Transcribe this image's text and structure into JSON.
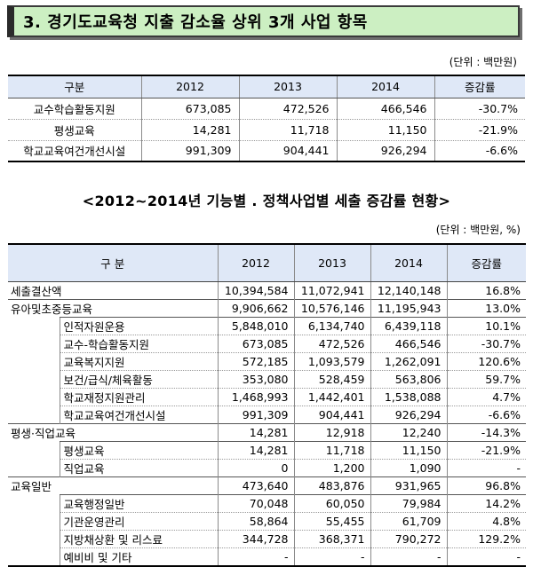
{
  "title": "3. 경기도교육청 지출 감소율 상위 3개 사업 항목",
  "table1": {
    "unit": "(단위 : 백만원)",
    "headers": [
      "구분",
      "2012",
      "2013",
      "2014",
      "증감률"
    ],
    "rows": [
      [
        "교수학습활동지원",
        "673,085",
        "472,526",
        "466,546",
        "-30.7%"
      ],
      [
        "평생교육",
        "14,281",
        "11,718",
        "11,150",
        "-21.9%"
      ],
      [
        "학교교육여건개선시설",
        "991,309",
        "904,441",
        "926,294",
        "-6.6%"
      ]
    ]
  },
  "subtitle": "<2012~2014년 기능별 . 정책사업별 세출 증감률 현황>",
  "table2": {
    "unit": "(단위 : 백만원, %)",
    "headers": [
      "구 분",
      "2012",
      "2013",
      "2014",
      "증감률"
    ],
    "rows": [
      {
        "level": 1,
        "label": "세출결산액",
        "values": [
          "10,394,584",
          "11,072,941",
          "12,140,148",
          "16.8%"
        ]
      },
      {
        "level": 1,
        "label": "유아및초중등교육",
        "values": [
          "9,906,662",
          "10,576,146",
          "11,195,943",
          "13.0%"
        ]
      },
      {
        "level": 2,
        "label": "인적자원운용",
        "values": [
          "5,848,010",
          "6,134,740",
          "6,439,118",
          "10.1%"
        ]
      },
      {
        "level": 2,
        "label": "교수-학습활동지원",
        "values": [
          "673,085",
          "472,526",
          "466,546",
          "-30.7%"
        ]
      },
      {
        "level": 2,
        "label": "교육복지지원",
        "values": [
          "572,185",
          "1,093,579",
          "1,262,091",
          "120.6%"
        ]
      },
      {
        "level": 2,
        "label": "보건/급식/체육활동",
        "values": [
          "353,080",
          "528,459",
          "563,806",
          "59.7%"
        ]
      },
      {
        "level": 2,
        "label": "학교재정지원관리",
        "values": [
          "1,468,993",
          "1,442,401",
          "1,538,088",
          "4.7%"
        ]
      },
      {
        "level": 2,
        "label": "학교교육여건개선시설",
        "values": [
          "991,309",
          "904,441",
          "926,294",
          "-6.6%"
        ]
      },
      {
        "level": 1,
        "label": "평생·직업교육",
        "values": [
          "14,281",
          "12,918",
          "12,240",
          "-14.3%"
        ]
      },
      {
        "level": 2,
        "label": "평생교육",
        "values": [
          "14,281",
          "11,718",
          "11,150",
          "-21.9%"
        ]
      },
      {
        "level": 2,
        "label": "직업교육",
        "values": [
          "0",
          "1,200",
          "1,090",
          "-"
        ]
      },
      {
        "level": 1,
        "label": "교육일반",
        "values": [
          "473,640",
          "483,876",
          "931,965",
          "96.8%"
        ]
      },
      {
        "level": 2,
        "label": "교육행정일반",
        "values": [
          "70,048",
          "60,050",
          "79,984",
          "14.2%"
        ]
      },
      {
        "level": 2,
        "label": "기관운영관리",
        "values": [
          "58,864",
          "55,455",
          "61,709",
          "4.8%"
        ]
      },
      {
        "level": 2,
        "label": "지방채상환 및 리스료",
        "values": [
          "344,728",
          "368,371",
          "790,272",
          "129.2%"
        ]
      },
      {
        "level": 2,
        "label": "예비비 및 기타",
        "values": [
          "-",
          "-",
          "-",
          "-"
        ]
      }
    ]
  }
}
